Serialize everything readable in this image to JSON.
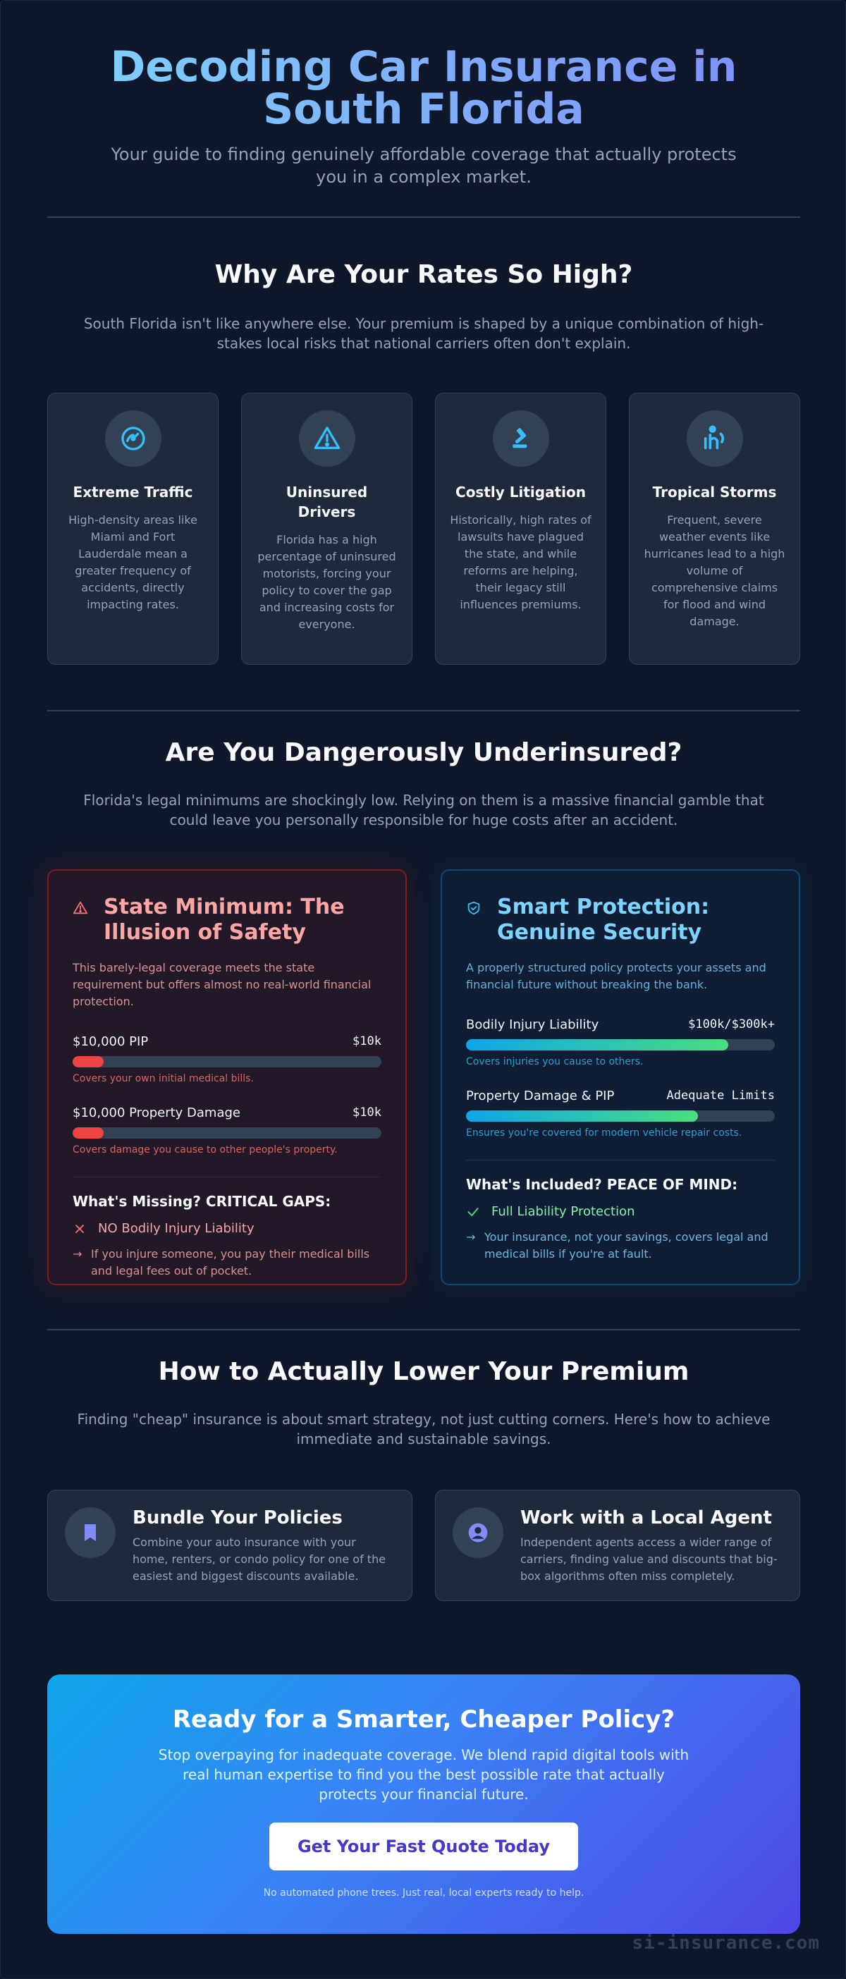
{
  "hero": {
    "title_line1": "Decoding Car Insurance in",
    "title_line2": "South Florida",
    "subtitle": "Your guide to finding genuinely affordable coverage that actually protects you in a complex market."
  },
  "rates": {
    "title": "Why Are Your Rates So High?",
    "subtitle": "South Florida isn't like anywhere else. Your premium is shaped by a unique combination of high-stakes local risks that national carriers often don't explain.",
    "cards": [
      {
        "icon": "speedometer-icon",
        "title": "Extreme Traffic",
        "desc": "High-density areas like Miami and Fort Lauderdale mean a greater frequency of accidents, directly impacting rates."
      },
      {
        "icon": "warning-triangle-icon",
        "title": "Uninsured Drivers",
        "desc": "Florida has a high percentage of uninsured motorists, forcing your policy to cover the gap and increasing costs for everyone."
      },
      {
        "icon": "gavel-icon",
        "title": "Costly Litigation",
        "desc": "Historically, high rates of lawsuits have plagued the state, and while reforms are helping, their legacy still influences premiums."
      },
      {
        "icon": "storm-icon",
        "title": "Tropical Storms",
        "desc": "Frequent, severe weather events like hurricanes lead to a high volume of comprehensive claims for flood and wind damage."
      }
    ]
  },
  "underinsured": {
    "title": "Are You Dangerously Underinsured?",
    "subtitle": "Florida's legal minimums are shockingly low. Relying on them is a massive financial gamble that could leave you personally responsible for huge costs after an accident."
  },
  "minimum": {
    "title": "State Minimum: The Illusion of Safety",
    "desc": "This barely-legal coverage meets the state requirement but offers almost no real-world financial protection.",
    "bars": [
      {
        "label": "$10,000 PIP",
        "value": "$10k",
        "note": "Covers your own initial medical bills.",
        "fill_percent": 10
      },
      {
        "label": "$10,000 Property Damage",
        "value": "$10k",
        "note": "Covers damage you cause to other people's property.",
        "fill_percent": 10
      }
    ],
    "gaps_title": "What's Missing? CRITICAL GAPS:",
    "gap_item": "NO Bodily Injury Liability",
    "gap_note": "If you injure someone, you pay their medical bills and legal fees out of pocket."
  },
  "smart": {
    "title": "Smart Protection: Genuine Security",
    "desc": "A properly structured policy protects your assets and financial future without breaking the bank.",
    "bars": [
      {
        "label": "Bodily Injury Liability",
        "value": "$100k/$300k+",
        "note": "Covers injuries you cause to others.",
        "fill_percent": 85
      },
      {
        "label": "Property Damage & PIP",
        "value": "Adequate Limits",
        "note": "Ensures you're covered for modern vehicle repair costs.",
        "fill_percent": 75
      }
    ],
    "included_title": "What's Included? PEACE OF MIND:",
    "included_item": "Full Liability Protection",
    "included_note": "Your insurance, not your savings, covers legal and medical bills if you're at fault."
  },
  "premium": {
    "title": "How to Actually Lower Your Premium",
    "subtitle": "Finding \"cheap\" insurance is about smart strategy, not just cutting corners. Here's how to achieve immediate and sustainable savings.",
    "tips": [
      {
        "icon": "bookmark-icon",
        "title": "Bundle Your Policies",
        "desc": "Combine your auto insurance with your home, renters, or condo policy for one of the easiest and biggest discounts available."
      },
      {
        "icon": "user-circle-icon",
        "title": "Work with a Local Agent",
        "desc": "Independent agents access a wider range of carriers, finding value and discounts that big-box algorithms often miss completely."
      }
    ]
  },
  "cta": {
    "title": "Ready for a Smarter, Cheaper Policy?",
    "desc": "Stop overpaying for inadequate coverage. We blend rapid digital tools with real human expertise to find you the best possible rate that actually protects your financial future.",
    "button": "Get Your Fast Quote Today",
    "note": "No automated phone trees. Just real, local experts ready to help."
  },
  "brand": "si-insurance.com",
  "colors": {
    "background": "#0f172a",
    "card": "#1e293b",
    "accent_blue": "#38bdf8",
    "danger_red": "#ef4444",
    "success_green": "#4ade80",
    "cta_gradient_end": "#4f46e5"
  }
}
